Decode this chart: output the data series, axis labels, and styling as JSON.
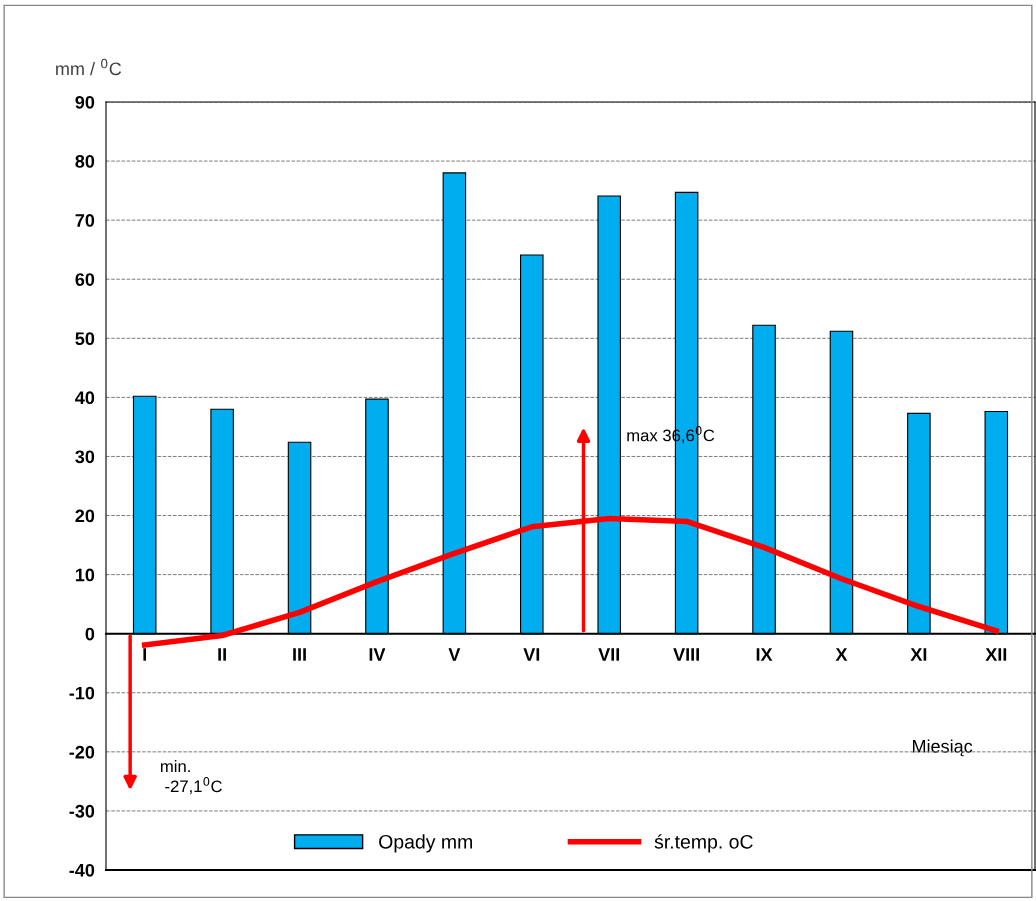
{
  "chart_data": {
    "type": "bar",
    "ylabel": "mm / $^{0}$C",
    "xlabel": "Miesiąc",
    "categories": [
      "I",
      "II",
      "III",
      "IV",
      "V",
      "VI",
      "VII",
      "VIII",
      "IX",
      "X",
      "XI",
      "XII"
    ],
    "series": [
      {
        "name": "Opady mm",
        "color": "#00aeef",
        "values": [
          40.2,
          38.0,
          32.4,
          39.7,
          78.0,
          64.1,
          74.1,
          74.7,
          52.2,
          51.2,
          37.3,
          37.6
        ]
      },
      {
        "name": "śr.temp. oC",
        "type": "line",
        "color": "#ff0000",
        "values": [
          -1.9,
          -0.3,
          3.6,
          8.8,
          13.6,
          18.1,
          19.5,
          19.0,
          14.6,
          9.3,
          4.6,
          0.5
        ]
      }
    ],
    "ylim": [
      -40,
      90
    ],
    "yticks": [
      -40,
      -30,
      -20,
      -10,
      0,
      10,
      20,
      30,
      40,
      50,
      60,
      70,
      80,
      90
    ],
    "grid": "y",
    "legend": "bottom",
    "marker": "none",
    "line_style": "solid",
    "annotations": [
      "min.\n -27,1$^{0}$C",
      "max 36,6$^{0}$C"
    ]
  }
}
